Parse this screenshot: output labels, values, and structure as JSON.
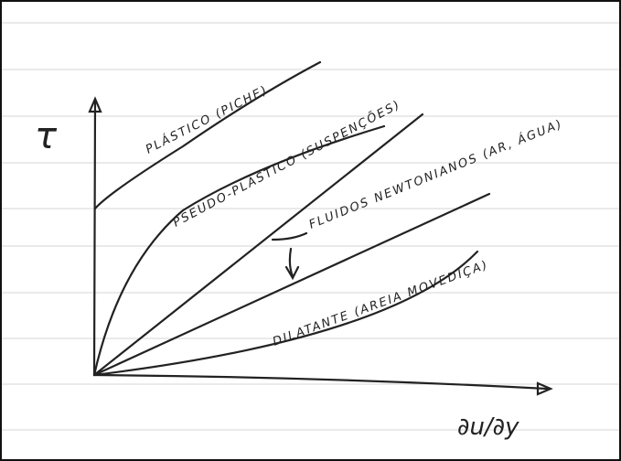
{
  "axes": {
    "y_label": "τ",
    "x_label": "∂u/∂y"
  },
  "curves": [
    {
      "label": "PLÁSTICO (PICHE)"
    },
    {
      "label": "PSEUDO-PLÁSTICO (SUSPENÇÕES)"
    },
    {
      "label": "FLUIDOS NEWTONIANOS (AR, ÁGUA)"
    },
    {
      "label": "DILATANTE (AREIA MOVEDIÇA)"
    }
  ]
}
